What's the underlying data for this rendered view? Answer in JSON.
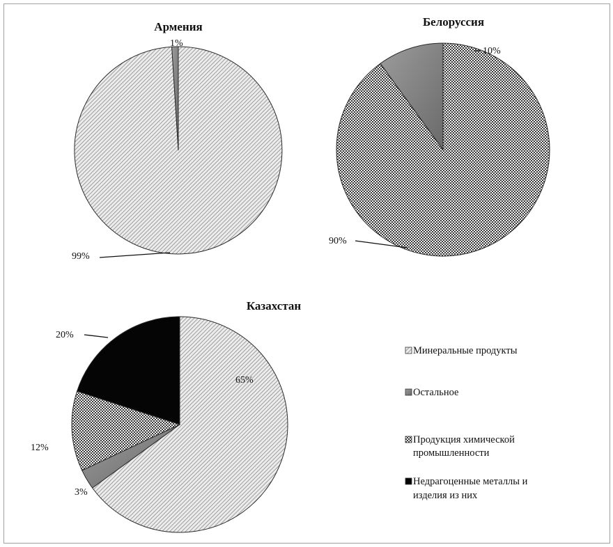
{
  "chart_data": [
    {
      "type": "pie",
      "title": "Армения",
      "categories": [
        "Минеральные продукты",
        "Остальное"
      ],
      "values": [
        99,
        1
      ],
      "labels": [
        "99%",
        "1%"
      ],
      "colors": [
        "pat-mineral",
        "pat-rest"
      ]
    },
    {
      "type": "pie",
      "title": "Белоруссия",
      "categories": [
        "Продукция химической промышленности",
        "Остальное"
      ],
      "values": [
        90,
        10
      ],
      "labels": [
        "90%",
        "10%"
      ],
      "colors": [
        "pat-chem",
        "pat-rest"
      ]
    },
    {
      "type": "pie",
      "title": "Казахстан",
      "categories": [
        "Минеральные продукты",
        "Остальное",
        "Продукция химической промышленности",
        "Недрагоценные металлы и изделия из них"
      ],
      "values": [
        65,
        3,
        12,
        20
      ],
      "labels": [
        "65%",
        "3%",
        "12%",
        "20%"
      ],
      "colors": [
        "pat-mineral",
        "pat-rest",
        "pat-chem",
        "pat-metal"
      ]
    }
  ],
  "legend": {
    "placement": "right",
    "items": [
      {
        "label_lines": [
          "Минеральные продукты"
        ],
        "swatch": "pat-mineral"
      },
      {
        "label_lines": [
          "Остальное"
        ],
        "swatch": "pat-rest"
      },
      {
        "label_lines": [
          "Продукция химической",
          "промышленности"
        ],
        "swatch": "pat-chem"
      },
      {
        "label_lines": [
          "Недрагоценные металлы и",
          "изделия из них"
        ],
        "swatch": "pat-metal"
      }
    ]
  }
}
